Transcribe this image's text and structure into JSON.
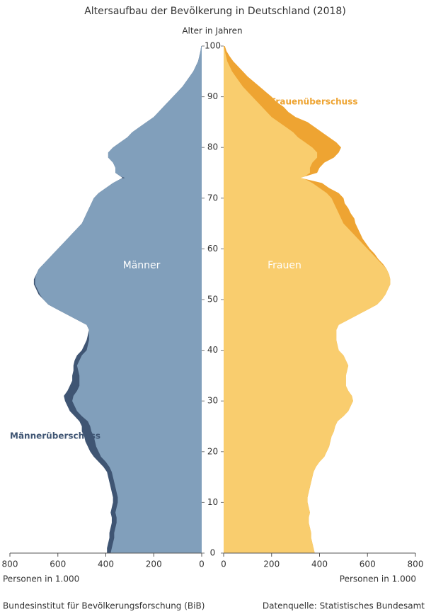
{
  "chart_data": {
    "type": "pyramid",
    "title": "Altersaufbau der Bevölkerung in Deutschland (2018)",
    "y_label": "Alter in Jahren",
    "x_label": "Personen in 1.000",
    "source_left": "Bundesinstitut für Bevölkerungsforschung (BiB)",
    "source_right": "Datenquelle: Statistisches Bundesamt",
    "y": [
      0,
      1,
      2,
      3,
      4,
      5,
      6,
      7,
      8,
      9,
      10,
      11,
      12,
      13,
      14,
      15,
      16,
      17,
      18,
      19,
      20,
      21,
      22,
      23,
      24,
      25,
      26,
      27,
      28,
      29,
      30,
      31,
      32,
      33,
      34,
      35,
      36,
      37,
      38,
      39,
      40,
      41,
      42,
      43,
      44,
      45,
      46,
      47,
      48,
      49,
      50,
      51,
      52,
      53,
      54,
      55,
      56,
      57,
      58,
      59,
      60,
      61,
      62,
      63,
      64,
      65,
      66,
      67,
      68,
      69,
      70,
      71,
      72,
      73,
      74,
      75,
      76,
      77,
      78,
      79,
      80,
      81,
      82,
      83,
      84,
      85,
      86,
      87,
      88,
      89,
      90,
      91,
      92,
      93,
      94,
      95,
      96,
      97,
      98,
      99,
      100
    ],
    "ylim": [
      0,
      100
    ],
    "yticks": [
      0,
      10,
      20,
      30,
      40,
      50,
      60,
      70,
      80,
      90,
      100
    ],
    "xlim": [
      0,
      800
    ],
    "xticks": [
      0,
      200,
      400,
      600,
      800
    ],
    "series": [
      {
        "name": "Männer",
        "color": "#819fbb",
        "surplus_label": "Männerüberschuss",
        "surplus_color": "#3f5573",
        "values": [
          395,
          395,
          390,
          385,
          385,
          380,
          375,
          375,
          380,
          375,
          370,
          370,
          375,
          380,
          385,
          390,
          395,
          410,
          430,
          450,
          465,
          475,
          485,
          490,
          500,
          500,
          510,
          530,
          550,
          560,
          570,
          575,
          560,
          550,
          540,
          540,
          535,
          535,
          530,
          520,
          500,
          490,
          480,
          475,
          470,
          480,
          520,
          560,
          600,
          640,
          660,
          680,
          690,
          700,
          700,
          690,
          680,
          660,
          640,
          620,
          600,
          580,
          560,
          540,
          520,
          500,
          490,
          480,
          470,
          460,
          450,
          430,
          400,
          370,
          330,
          360,
          360,
          370,
          390,
          390,
          370,
          340,
          310,
          290,
          260,
          230,
          200,
          180,
          160,
          140,
          120,
          100,
          80,
          65,
          50,
          35,
          25,
          15,
          10,
          5,
          2
        ]
      },
      {
        "name": "Frauen",
        "color": "#f9cd6e",
        "surplus_label": "Frauenüberschuss",
        "surplus_color": "#eea432",
        "values": [
          380,
          375,
          370,
          365,
          365,
          360,
          355,
          355,
          360,
          355,
          350,
          350,
          355,
          360,
          365,
          370,
          375,
          385,
          400,
          420,
          430,
          440,
          445,
          450,
          460,
          465,
          475,
          500,
          520,
          530,
          540,
          535,
          520,
          510,
          510,
          510,
          515,
          520,
          510,
          500,
          480,
          475,
          470,
          470,
          470,
          480,
          520,
          560,
          600,
          640,
          660,
          675,
          685,
          695,
          695,
          690,
          680,
          665,
          645,
          630,
          610,
          595,
          580,
          570,
          560,
          550,
          545,
          530,
          520,
          505,
          500,
          480,
          440,
          410,
          320,
          390,
          400,
          420,
          460,
          480,
          490,
          470,
          440,
          410,
          380,
          350,
          300,
          270,
          250,
          220,
          200,
          175,
          150,
          125,
          100,
          80,
          60,
          40,
          25,
          12,
          5
        ]
      }
    ]
  }
}
